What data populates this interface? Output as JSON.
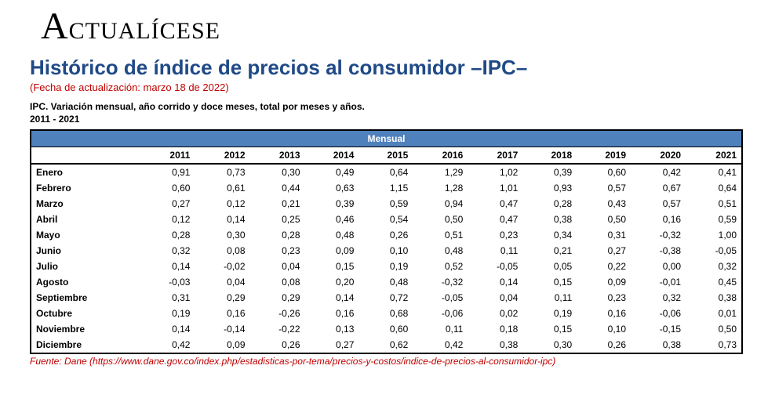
{
  "brand": {
    "cap": "A",
    "rest": "CTUALÍCESE"
  },
  "title": "Histórico de índice de precios al consumidor –IPC–",
  "update": "(Fecha de actualización: marzo 18 de 2022)",
  "subtitle": "IPC. Variación mensual, año corrido y doce meses, total por meses y años.",
  "range": "2011 - 2021",
  "table": {
    "group_header": "Mensual",
    "years": [
      "2011",
      "2012",
      "2013",
      "2014",
      "2015",
      "2016",
      "2017",
      "2018",
      "2019",
      "2020",
      "2021"
    ],
    "rows": [
      {
        "m": "Enero",
        "v": [
          "0,91",
          "0,73",
          "0,30",
          "0,49",
          "0,64",
          "1,29",
          "1,02",
          "0,39",
          "0,60",
          "0,42",
          "0,41"
        ]
      },
      {
        "m": "Febrero",
        "v": [
          "0,60",
          "0,61",
          "0,44",
          "0,63",
          "1,15",
          "1,28",
          "1,01",
          "0,93",
          "0,57",
          "0,67",
          "0,64"
        ]
      },
      {
        "m": "Marzo",
        "v": [
          "0,27",
          "0,12",
          "0,21",
          "0,39",
          "0,59",
          "0,94",
          "0,47",
          "0,28",
          "0,43",
          "0,57",
          "0,51"
        ]
      },
      {
        "m": "Abril",
        "v": [
          "0,12",
          "0,14",
          "0,25",
          "0,46",
          "0,54",
          "0,50",
          "0,47",
          "0,38",
          "0,50",
          "0,16",
          "0,59"
        ]
      },
      {
        "m": "Mayo",
        "v": [
          "0,28",
          "0,30",
          "0,28",
          "0,48",
          "0,26",
          "0,51",
          "0,23",
          "0,34",
          "0,31",
          "-0,32",
          "1,00"
        ]
      },
      {
        "m": "Junio",
        "v": [
          "0,32",
          "0,08",
          "0,23",
          "0,09",
          "0,10",
          "0,48",
          "0,11",
          "0,21",
          "0,27",
          "-0,38",
          "-0,05"
        ]
      },
      {
        "m": "Julio",
        "v": [
          "0,14",
          "-0,02",
          "0,04",
          "0,15",
          "0,19",
          "0,52",
          "-0,05",
          "0,05",
          "0,22",
          "0,00",
          "0,32"
        ]
      },
      {
        "m": "Agosto",
        "v": [
          "-0,03",
          "0,04",
          "0,08",
          "0,20",
          "0,48",
          "-0,32",
          "0,14",
          "0,15",
          "0,09",
          "-0,01",
          "0,45"
        ]
      },
      {
        "m": "Septiembre",
        "v": [
          "0,31",
          "0,29",
          "0,29",
          "0,14",
          "0,72",
          "-0,05",
          "0,04",
          "0,11",
          "0,23",
          "0,32",
          "0,38"
        ]
      },
      {
        "m": "Octubre",
        "v": [
          "0,19",
          "0,16",
          "-0,26",
          "0,16",
          "0,68",
          "-0,06",
          "0,02",
          "0,19",
          "0,16",
          "-0,06",
          "0,01"
        ]
      },
      {
        "m": "Noviembre",
        "v": [
          "0,14",
          "-0,14",
          "-0,22",
          "0,13",
          "0,60",
          "0,11",
          "0,18",
          "0,15",
          "0,10",
          "-0,15",
          "0,50"
        ]
      },
      {
        "m": "Diciembre",
        "v": [
          "0,42",
          "0,09",
          "0,26",
          "0,27",
          "0,62",
          "0,42",
          "0,38",
          "0,30",
          "0,26",
          "0,38",
          "0,73"
        ]
      }
    ]
  },
  "source": "Fuente: Dane (https://www.dane.gov.co/index.php/estadisticas-por-tema/precios-y-costos/indice-de-precios-al-consumidor-ipc)",
  "colors": {
    "header_bg": "#4f81bd",
    "title_color": "#204a87",
    "accent_red": "#c00000",
    "page_bg": "#d9d9d9"
  }
}
